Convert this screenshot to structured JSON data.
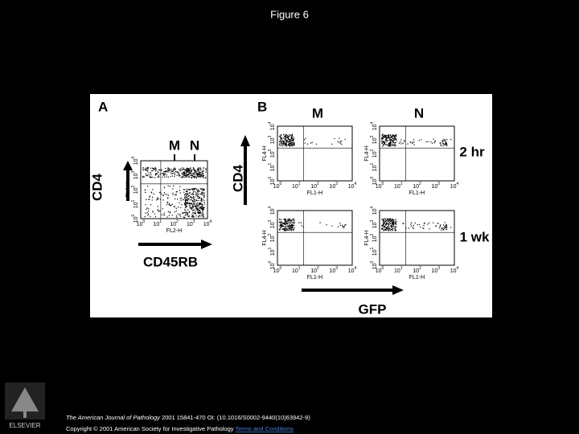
{
  "header": {
    "title": "Figure 6"
  },
  "figure": {
    "panel_a": {
      "label": "A",
      "gates": [
        "M",
        "N"
      ],
      "y_label": "CD4",
      "x_label": "CD45RB",
      "plot": {
        "x_axis": "FL2-H",
        "y_axis": "FL4-H"
      }
    },
    "panel_b": {
      "label": "B",
      "columns": [
        "M",
        "N"
      ],
      "rows": [
        "2 hr",
        "1 wk"
      ],
      "y_label": "CD4",
      "x_label": "GFP",
      "plot": {
        "x_axis": "FL1-H",
        "y_axis": "FL4-H"
      }
    },
    "tick_base": "10",
    "tick_exponents": [
      "0",
      "1",
      "2",
      "3",
      "4"
    ]
  },
  "footer": {
    "citation": {
      "journal": "The American Journal of Pathology",
      "details": "2001 15841-470 OI: (10.1016/S0002-9440(10)63942-9)"
    },
    "copyright": "Copyright © 2001 American Society for Investigative Pathology",
    "link": "Terms and Conditions"
  },
  "logo": {
    "text": "ELSEVIER"
  }
}
